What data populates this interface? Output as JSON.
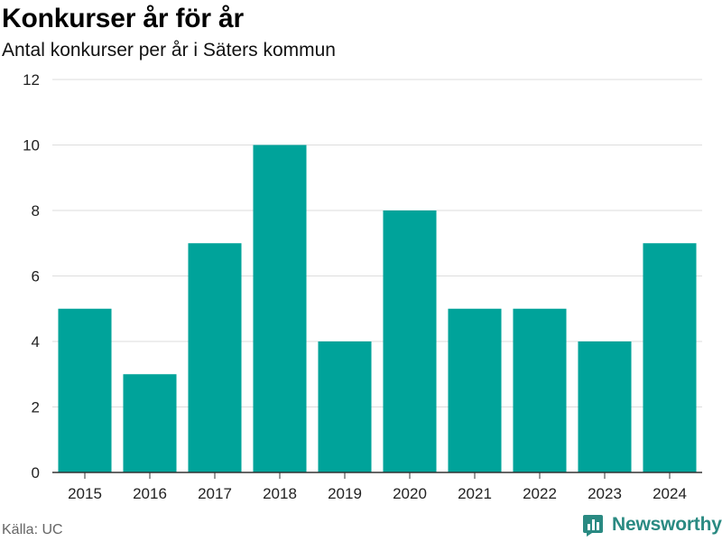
{
  "chart_data": {
    "type": "bar",
    "title": "Konkurser år för år",
    "subtitle": "Antal konkurser per år i Säters kommun",
    "categories": [
      "2015",
      "2016",
      "2017",
      "2018",
      "2019",
      "2020",
      "2021",
      "2022",
      "2023",
      "2024"
    ],
    "series": [
      {
        "values": [
          5,
          3,
          7,
          10,
          4,
          8,
          5,
          5,
          4,
          7
        ]
      }
    ],
    "ylim": [
      0,
      12
    ],
    "yticks": [
      0,
      2,
      4,
      6,
      8,
      10,
      12
    ],
    "grid": true,
    "bar_color": "#00a39a",
    "xlabel": "",
    "ylabel": ""
  },
  "footer": {
    "source": "Källa: UC",
    "brand": "Newsworthy",
    "brand_color": "#2a8a82",
    "brand_icon": "bar-chart-logo-icon"
  }
}
